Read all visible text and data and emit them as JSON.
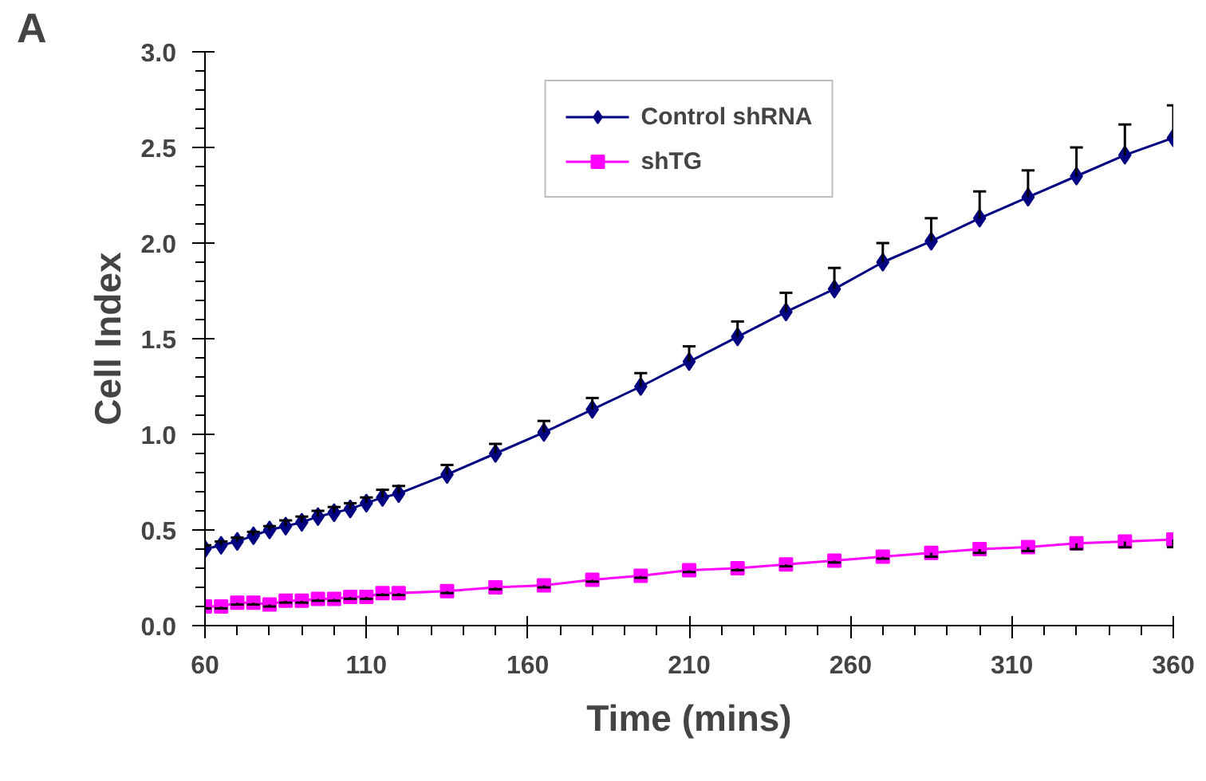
{
  "chart_data": {
    "type": "line",
    "title": "A",
    "xlabel": "Time (mins)",
    "ylabel": "Cell Index",
    "x": [
      60,
      65,
      70,
      75,
      80,
      85,
      90,
      95,
      100,
      105,
      110,
      115,
      120,
      135,
      150,
      165,
      180,
      195,
      210,
      225,
      240,
      255,
      270,
      285,
      300,
      315,
      330,
      345,
      360
    ],
    "series": [
      {
        "name": "Control shRNA",
        "color": "#000080",
        "marker": "diamond",
        "values": [
          0.4,
          0.42,
          0.44,
          0.47,
          0.5,
          0.52,
          0.54,
          0.57,
          0.59,
          0.61,
          0.64,
          0.67,
          0.69,
          0.79,
          0.9,
          1.01,
          1.13,
          1.25,
          1.38,
          1.51,
          1.64,
          1.76,
          1.9,
          2.01,
          2.13,
          2.24,
          2.35,
          2.46,
          2.55
        ],
        "errors": [
          [
            0.4,
            0.42
          ],
          [
            0.42,
            0.44
          ],
          [
            0.44,
            0.46
          ],
          [
            0.47,
            0.49
          ],
          [
            0.5,
            0.52
          ],
          [
            0.52,
            0.55
          ],
          [
            0.54,
            0.57
          ],
          [
            0.57,
            0.6
          ],
          [
            0.59,
            0.62
          ],
          [
            0.61,
            0.64
          ],
          [
            0.64,
            0.67
          ],
          [
            0.67,
            0.71
          ],
          [
            0.69,
            0.73
          ],
          [
            0.79,
            0.84
          ],
          [
            0.9,
            0.95
          ],
          [
            1.01,
            1.07
          ],
          [
            1.13,
            1.19
          ],
          [
            1.25,
            1.32
          ],
          [
            1.38,
            1.46
          ],
          [
            1.51,
            1.59
          ],
          [
            1.64,
            1.74
          ],
          [
            1.76,
            1.87
          ],
          [
            1.9,
            2.0
          ],
          [
            2.01,
            2.13
          ],
          [
            2.13,
            2.27
          ],
          [
            2.24,
            2.38
          ],
          [
            2.35,
            2.5
          ],
          [
            2.46,
            2.62
          ],
          [
            2.55,
            2.72
          ]
        ]
      },
      {
        "name": "shTG",
        "color": "#ff00ff",
        "marker": "square",
        "values": [
          0.1,
          0.1,
          0.12,
          0.12,
          0.11,
          0.13,
          0.13,
          0.14,
          0.14,
          0.15,
          0.15,
          0.17,
          0.17,
          0.18,
          0.2,
          0.21,
          0.24,
          0.26,
          0.29,
          0.3,
          0.32,
          0.34,
          0.36,
          0.38,
          0.4,
          0.41,
          0.43,
          0.44,
          0.45
        ],
        "errors": [
          [
            0.09,
            0.1
          ],
          [
            0.09,
            0.1
          ],
          [
            0.11,
            0.12
          ],
          [
            0.11,
            0.12
          ],
          [
            0.1,
            0.11
          ],
          [
            0.12,
            0.13
          ],
          [
            0.12,
            0.13
          ],
          [
            0.13,
            0.14
          ],
          [
            0.13,
            0.14
          ],
          [
            0.14,
            0.15
          ],
          [
            0.14,
            0.15
          ],
          [
            0.16,
            0.17
          ],
          [
            0.16,
            0.17
          ],
          [
            0.17,
            0.18
          ],
          [
            0.19,
            0.2
          ],
          [
            0.2,
            0.21
          ],
          [
            0.23,
            0.24
          ],
          [
            0.25,
            0.26
          ],
          [
            0.28,
            0.29
          ],
          [
            0.29,
            0.3
          ],
          [
            0.31,
            0.32
          ],
          [
            0.33,
            0.34
          ],
          [
            0.35,
            0.36
          ],
          [
            0.36,
            0.38
          ],
          [
            0.38,
            0.4
          ],
          [
            0.39,
            0.41
          ],
          [
            0.4,
            0.43
          ],
          [
            0.41,
            0.44
          ],
          [
            0.41,
            0.45
          ]
        ]
      }
    ],
    "xlim": [
      60,
      360
    ],
    "xticks": [
      60,
      110,
      160,
      210,
      260,
      310,
      360
    ],
    "ylim": [
      0,
      3
    ],
    "yticks": [
      {
        "value": 0,
        "label": "0.0"
      },
      {
        "value": 0.5,
        "label": "0.5"
      },
      {
        "value": 1,
        "label": "1.0"
      },
      {
        "value": 1.5,
        "label": "1.5"
      },
      {
        "value": 2,
        "label": "2.0"
      },
      {
        "value": 2.5,
        "label": "2.5"
      },
      {
        "value": 3,
        "label": "3.0"
      }
    ],
    "legend": "top",
    "grid": false,
    "line_style": "solid"
  }
}
